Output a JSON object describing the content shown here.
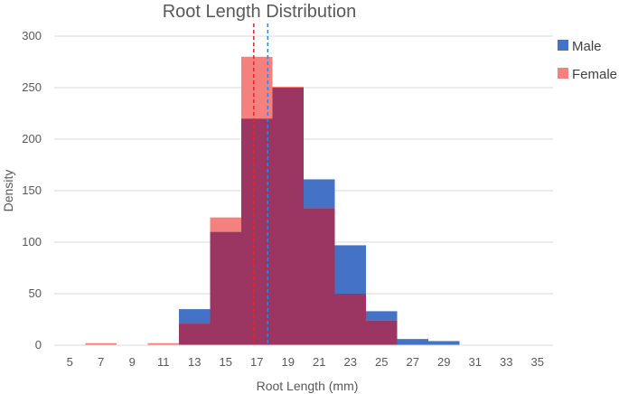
{
  "chart_data": {
    "type": "bar",
    "title": "Root Length Distribution",
    "xlabel": "Root Length (mm)",
    "ylabel": "Density",
    "xlim": [
      4,
      36
    ],
    "ylim": [
      0,
      300
    ],
    "x_ticks": [
      5,
      7,
      9,
      11,
      13,
      15,
      17,
      19,
      21,
      23,
      25,
      27,
      29,
      31,
      33,
      35
    ],
    "y_ticks": [
      0,
      50,
      100,
      150,
      200,
      250,
      300
    ],
    "bin_width": 2,
    "grid": true,
    "legend_position": "right",
    "series": [
      {
        "name": "Male",
        "color": "#4472C4",
        "bins": [
          {
            "x0": 12,
            "x1": 14,
            "value": 35
          },
          {
            "x0": 14,
            "x1": 16,
            "value": 110
          },
          {
            "x0": 16,
            "x1": 18,
            "value": 220
          },
          {
            "x0": 18,
            "x1": 20,
            "value": 250
          },
          {
            "x0": 20,
            "x1": 22,
            "value": 161
          },
          {
            "x0": 22,
            "x1": 24,
            "value": 97
          },
          {
            "x0": 24,
            "x1": 26,
            "value": 33
          },
          {
            "x0": 26,
            "x1": 28,
            "value": 6
          },
          {
            "x0": 28,
            "x1": 30,
            "value": 4
          }
        ],
        "mean": 17.7,
        "mean_color": "#2E86DE"
      },
      {
        "name": "Female",
        "color": "#F4817E",
        "bins": [
          {
            "x0": 6,
            "x1": 8,
            "value": 2
          },
          {
            "x0": 10,
            "x1": 12,
            "value": 2
          },
          {
            "x0": 12,
            "x1": 14,
            "value": 21
          },
          {
            "x0": 14,
            "x1": 16,
            "value": 124
          },
          {
            "x0": 16,
            "x1": 18,
            "value": 280
          },
          {
            "x0": 18,
            "x1": 20,
            "value": 251
          },
          {
            "x0": 20,
            "x1": 22,
            "value": 133
          },
          {
            "x0": 22,
            "x1": 24,
            "value": 50
          },
          {
            "x0": 24,
            "x1": 26,
            "value": 24
          }
        ],
        "mean": 16.8,
        "mean_color": "#E8232A"
      }
    ],
    "overlap_color": "#9B3562"
  }
}
